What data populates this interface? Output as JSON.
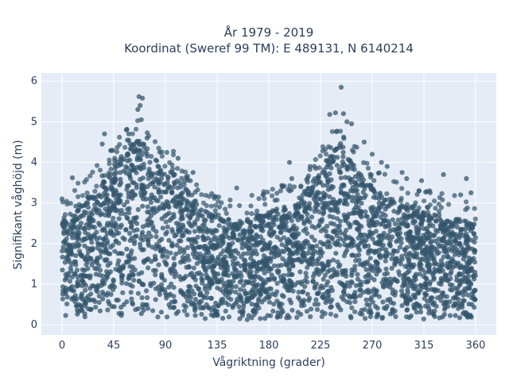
{
  "chart_data": {
    "type": "scatter",
    "title_lines": [
      "År 1979 - 2019",
      "Koordinat (Sweref 99 TM): E 489131, N 6140214"
    ],
    "xlabel": "Vågriktning (grader)",
    "ylabel": "Signifikant våghöjd (m)",
    "xlim": [
      -18,
      378
    ],
    "ylim": [
      -0.25,
      6.2
    ],
    "xticks": [
      0,
      45,
      90,
      135,
      180,
      225,
      270,
      315,
      360
    ],
    "yticks": [
      0,
      1,
      2,
      3,
      4,
      5,
      6
    ],
    "grid": true,
    "legend": "none",
    "colors": {
      "marker": "#34566c",
      "plot_bg": "#e5ecf6",
      "grid": "#ffffff",
      "text": "#2a3f5f"
    },
    "envelope": [
      {
        "x": 0,
        "y": 2.5
      },
      {
        "x": 10,
        "y": 2.9
      },
      {
        "x": 25,
        "y": 3.2
      },
      {
        "x": 40,
        "y": 3.7
      },
      {
        "x": 55,
        "y": 4.3
      },
      {
        "x": 68,
        "y": 4.6
      },
      {
        "x": 80,
        "y": 4.1
      },
      {
        "x": 95,
        "y": 3.8
      },
      {
        "x": 110,
        "y": 3.3
      },
      {
        "x": 125,
        "y": 2.8
      },
      {
        "x": 140,
        "y": 2.6
      },
      {
        "x": 160,
        "y": 2.6
      },
      {
        "x": 180,
        "y": 2.8
      },
      {
        "x": 200,
        "y": 3.0
      },
      {
        "x": 215,
        "y": 3.4
      },
      {
        "x": 230,
        "y": 4.0
      },
      {
        "x": 242,
        "y": 4.5
      },
      {
        "x": 255,
        "y": 3.9
      },
      {
        "x": 270,
        "y": 3.4
      },
      {
        "x": 290,
        "y": 3.0
      },
      {
        "x": 310,
        "y": 2.8
      },
      {
        "x": 330,
        "y": 2.7
      },
      {
        "x": 350,
        "y": 2.6
      },
      {
        "x": 360,
        "y": 2.5
      }
    ],
    "outliers": [
      {
        "x": 67,
        "y": 5.62
      },
      {
        "x": 70,
        "y": 5.58
      },
      {
        "x": 68,
        "y": 5.4
      },
      {
        "x": 66,
        "y": 5.3
      },
      {
        "x": 69,
        "y": 5.05
      },
      {
        "x": 56,
        "y": 4.8
      },
      {
        "x": 58,
        "y": 4.7
      },
      {
        "x": 37,
        "y": 4.7
      },
      {
        "x": 35,
        "y": 4.45
      },
      {
        "x": 74,
        "y": 4.6
      },
      {
        "x": 85,
        "y": 4.25
      },
      {
        "x": 9,
        "y": 3.62
      },
      {
        "x": 0,
        "y": 3.1
      },
      {
        "x": 114,
        "y": 3.75
      },
      {
        "x": 152,
        "y": 3.37
      },
      {
        "x": 137,
        "y": 2.9
      },
      {
        "x": 175,
        "y": 3.2
      },
      {
        "x": 198,
        "y": 4.0
      },
      {
        "x": 192,
        "y": 3.4
      },
      {
        "x": 216,
        "y": 3.9
      },
      {
        "x": 238,
        "y": 5.22
      },
      {
        "x": 245,
        "y": 5.2
      },
      {
        "x": 233,
        "y": 5.18
      },
      {
        "x": 243,
        "y": 5.85
      },
      {
        "x": 248,
        "y": 5.0
      },
      {
        "x": 252,
        "y": 4.95
      },
      {
        "x": 263,
        "y": 4.5
      },
      {
        "x": 270,
        "y": 4.2
      },
      {
        "x": 278,
        "y": 4.0
      },
      {
        "x": 296,
        "y": 3.75
      },
      {
        "x": 300,
        "y": 3.6
      },
      {
        "x": 313,
        "y": 3.55
      },
      {
        "x": 332,
        "y": 3.7
      },
      {
        "x": 347,
        "y": 3.2
      },
      {
        "x": 352,
        "y": 3.6
      },
      {
        "x": 356,
        "y": 3.25
      },
      {
        "x": 320,
        "y": 3.3
      },
      {
        "x": 283,
        "y": 3.9
      },
      {
        "x": 200,
        "y": 3.6
      },
      {
        "x": 101,
        "y": 4.1
      }
    ]
  }
}
